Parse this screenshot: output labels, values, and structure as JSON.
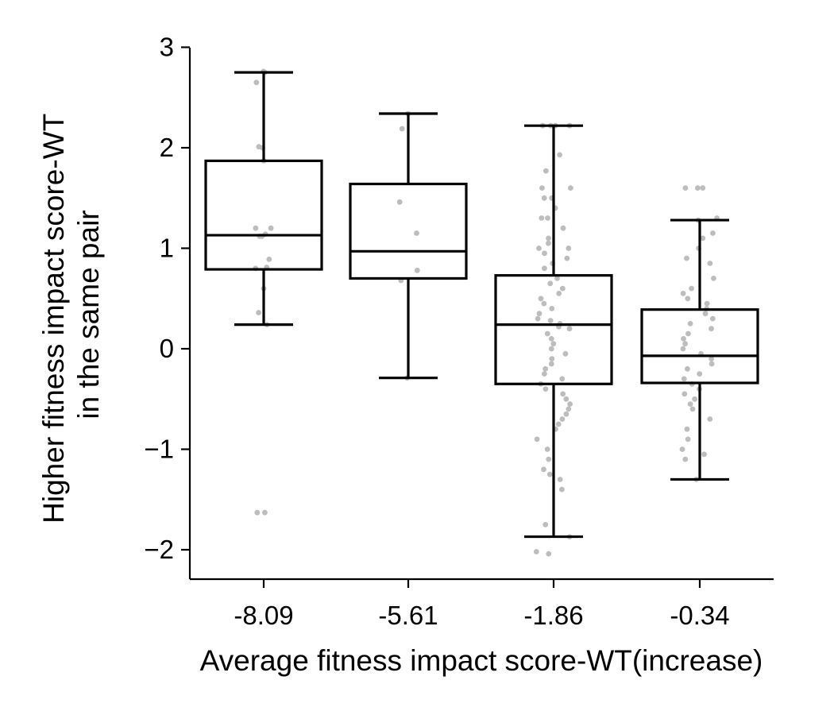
{
  "chart_data": {
    "type": "box",
    "xlabel": "Average fitness impact score-WT(increase)",
    "ylabel_lines": [
      "Higher fitness impact score-WT",
      "in the same pair"
    ],
    "categories": [
      "-8.09",
      "-5.61",
      "-1.86",
      "-0.34"
    ],
    "ylim": [
      -2.3,
      3.0
    ],
    "yticks": [
      {
        "value": 3,
        "label": "3"
      },
      {
        "value": 2,
        "label": "2"
      },
      {
        "value": 1,
        "label": "1"
      },
      {
        "value": 0,
        "label": "0"
      },
      {
        "value": -1,
        "label": "−1"
      },
      {
        "value": -2,
        "label": "−2"
      }
    ],
    "grid": false,
    "colors": {
      "box": "#000000",
      "points": "#bdbdbd"
    },
    "boxes": [
      {
        "category": "-8.09",
        "whisker_low": 0.24,
        "q1": 0.79,
        "median": 1.13,
        "q3": 1.87,
        "whisker_high": 2.75
      },
      {
        "category": "-5.61",
        "whisker_low": -0.29,
        "q1": 0.7,
        "median": 0.97,
        "q3": 1.64,
        "whisker_high": 2.34
      },
      {
        "category": "-1.86",
        "whisker_low": -1.87,
        "q1": -0.35,
        "median": 0.24,
        "q3": 0.73,
        "whisker_high": 2.22
      },
      {
        "category": "-0.34",
        "whisker_low": -1.3,
        "q1": -0.34,
        "median": -0.07,
        "q3": 0.39,
        "whisker_high": 1.28
      }
    ],
    "points": [
      {
        "category": "-8.09",
        "values": [
          2.76,
          2.75,
          2.65,
          2.01,
          2.0,
          1.87,
          1.2,
          1.2,
          1.14,
          1.12,
          1.12,
          0.89,
          0.81,
          0.8,
          0.6,
          0.36,
          0.24,
          -1.63,
          -1.63
        ]
      },
      {
        "category": "-5.61",
        "values": [
          2.34,
          2.19,
          1.46,
          1.15,
          0.78,
          0.68,
          -0.29
        ]
      },
      {
        "category": "-1.86",
        "values": [
          2.22,
          2.22,
          2.22,
          2.22,
          1.93,
          1.77,
          1.6,
          1.6,
          1.5,
          1.5,
          1.4,
          1.3,
          1.3,
          1.2,
          1.1,
          1.05,
          1.0,
          1.0,
          0.95,
          0.9,
          0.85,
          0.8,
          0.7,
          0.65,
          0.6,
          0.55,
          0.5,
          0.45,
          0.4,
          0.35,
          0.3,
          0.28,
          0.25,
          0.22,
          0.2,
          0.15,
          0.1,
          0.05,
          0.0,
          -0.05,
          -0.1,
          -0.15,
          -0.2,
          -0.25,
          -0.3,
          -0.35,
          -0.4,
          -0.45,
          -0.5,
          -0.55,
          -0.6,
          -0.65,
          -0.7,
          -0.75,
          -0.8,
          -0.9,
          -1.0,
          -1.1,
          -1.2,
          -1.25,
          -1.3,
          -1.4,
          -1.75,
          -1.87,
          -2.02,
          -2.04
        ]
      },
      {
        "category": "-0.34",
        "values": [
          1.6,
          1.6,
          1.6,
          1.3,
          1.28,
          1.15,
          1.1,
          1.0,
          0.9,
          0.85,
          0.7,
          0.6,
          0.55,
          0.5,
          0.45,
          0.4,
          0.35,
          0.3,
          0.25,
          0.2,
          0.15,
          0.1,
          0.05,
          0.0,
          -0.05,
          -0.1,
          -0.15,
          -0.2,
          -0.25,
          -0.3,
          -0.35,
          -0.4,
          -0.45,
          -0.5,
          -0.55,
          -0.6,
          -0.7,
          -0.8,
          -0.9,
          -1.0,
          -1.05,
          -1.1,
          -1.3
        ]
      }
    ]
  }
}
